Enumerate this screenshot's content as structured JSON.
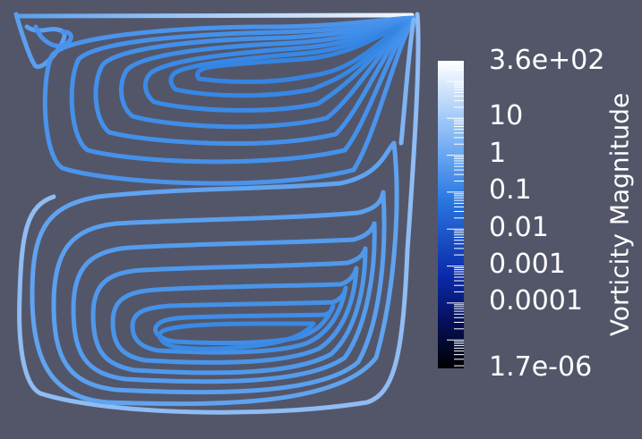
{
  "legend": {
    "title": "Vorticity Magnitude",
    "ticks": [
      "3.6e+02",
      "10",
      "1",
      "0.1",
      "0.01",
      "0.001",
      "0.0001",
      "1.7e-06"
    ],
    "range": [
      "1.7e-06",
      "3.6e+02"
    ],
    "scale": "log",
    "colors": {
      "max": "#ffffff",
      "mid": "#3a86e8",
      "low": "#0a1a8a",
      "min": "#000000"
    }
  },
  "view": {
    "background": "#535669",
    "streamline_color": "#3f8ae0"
  }
}
